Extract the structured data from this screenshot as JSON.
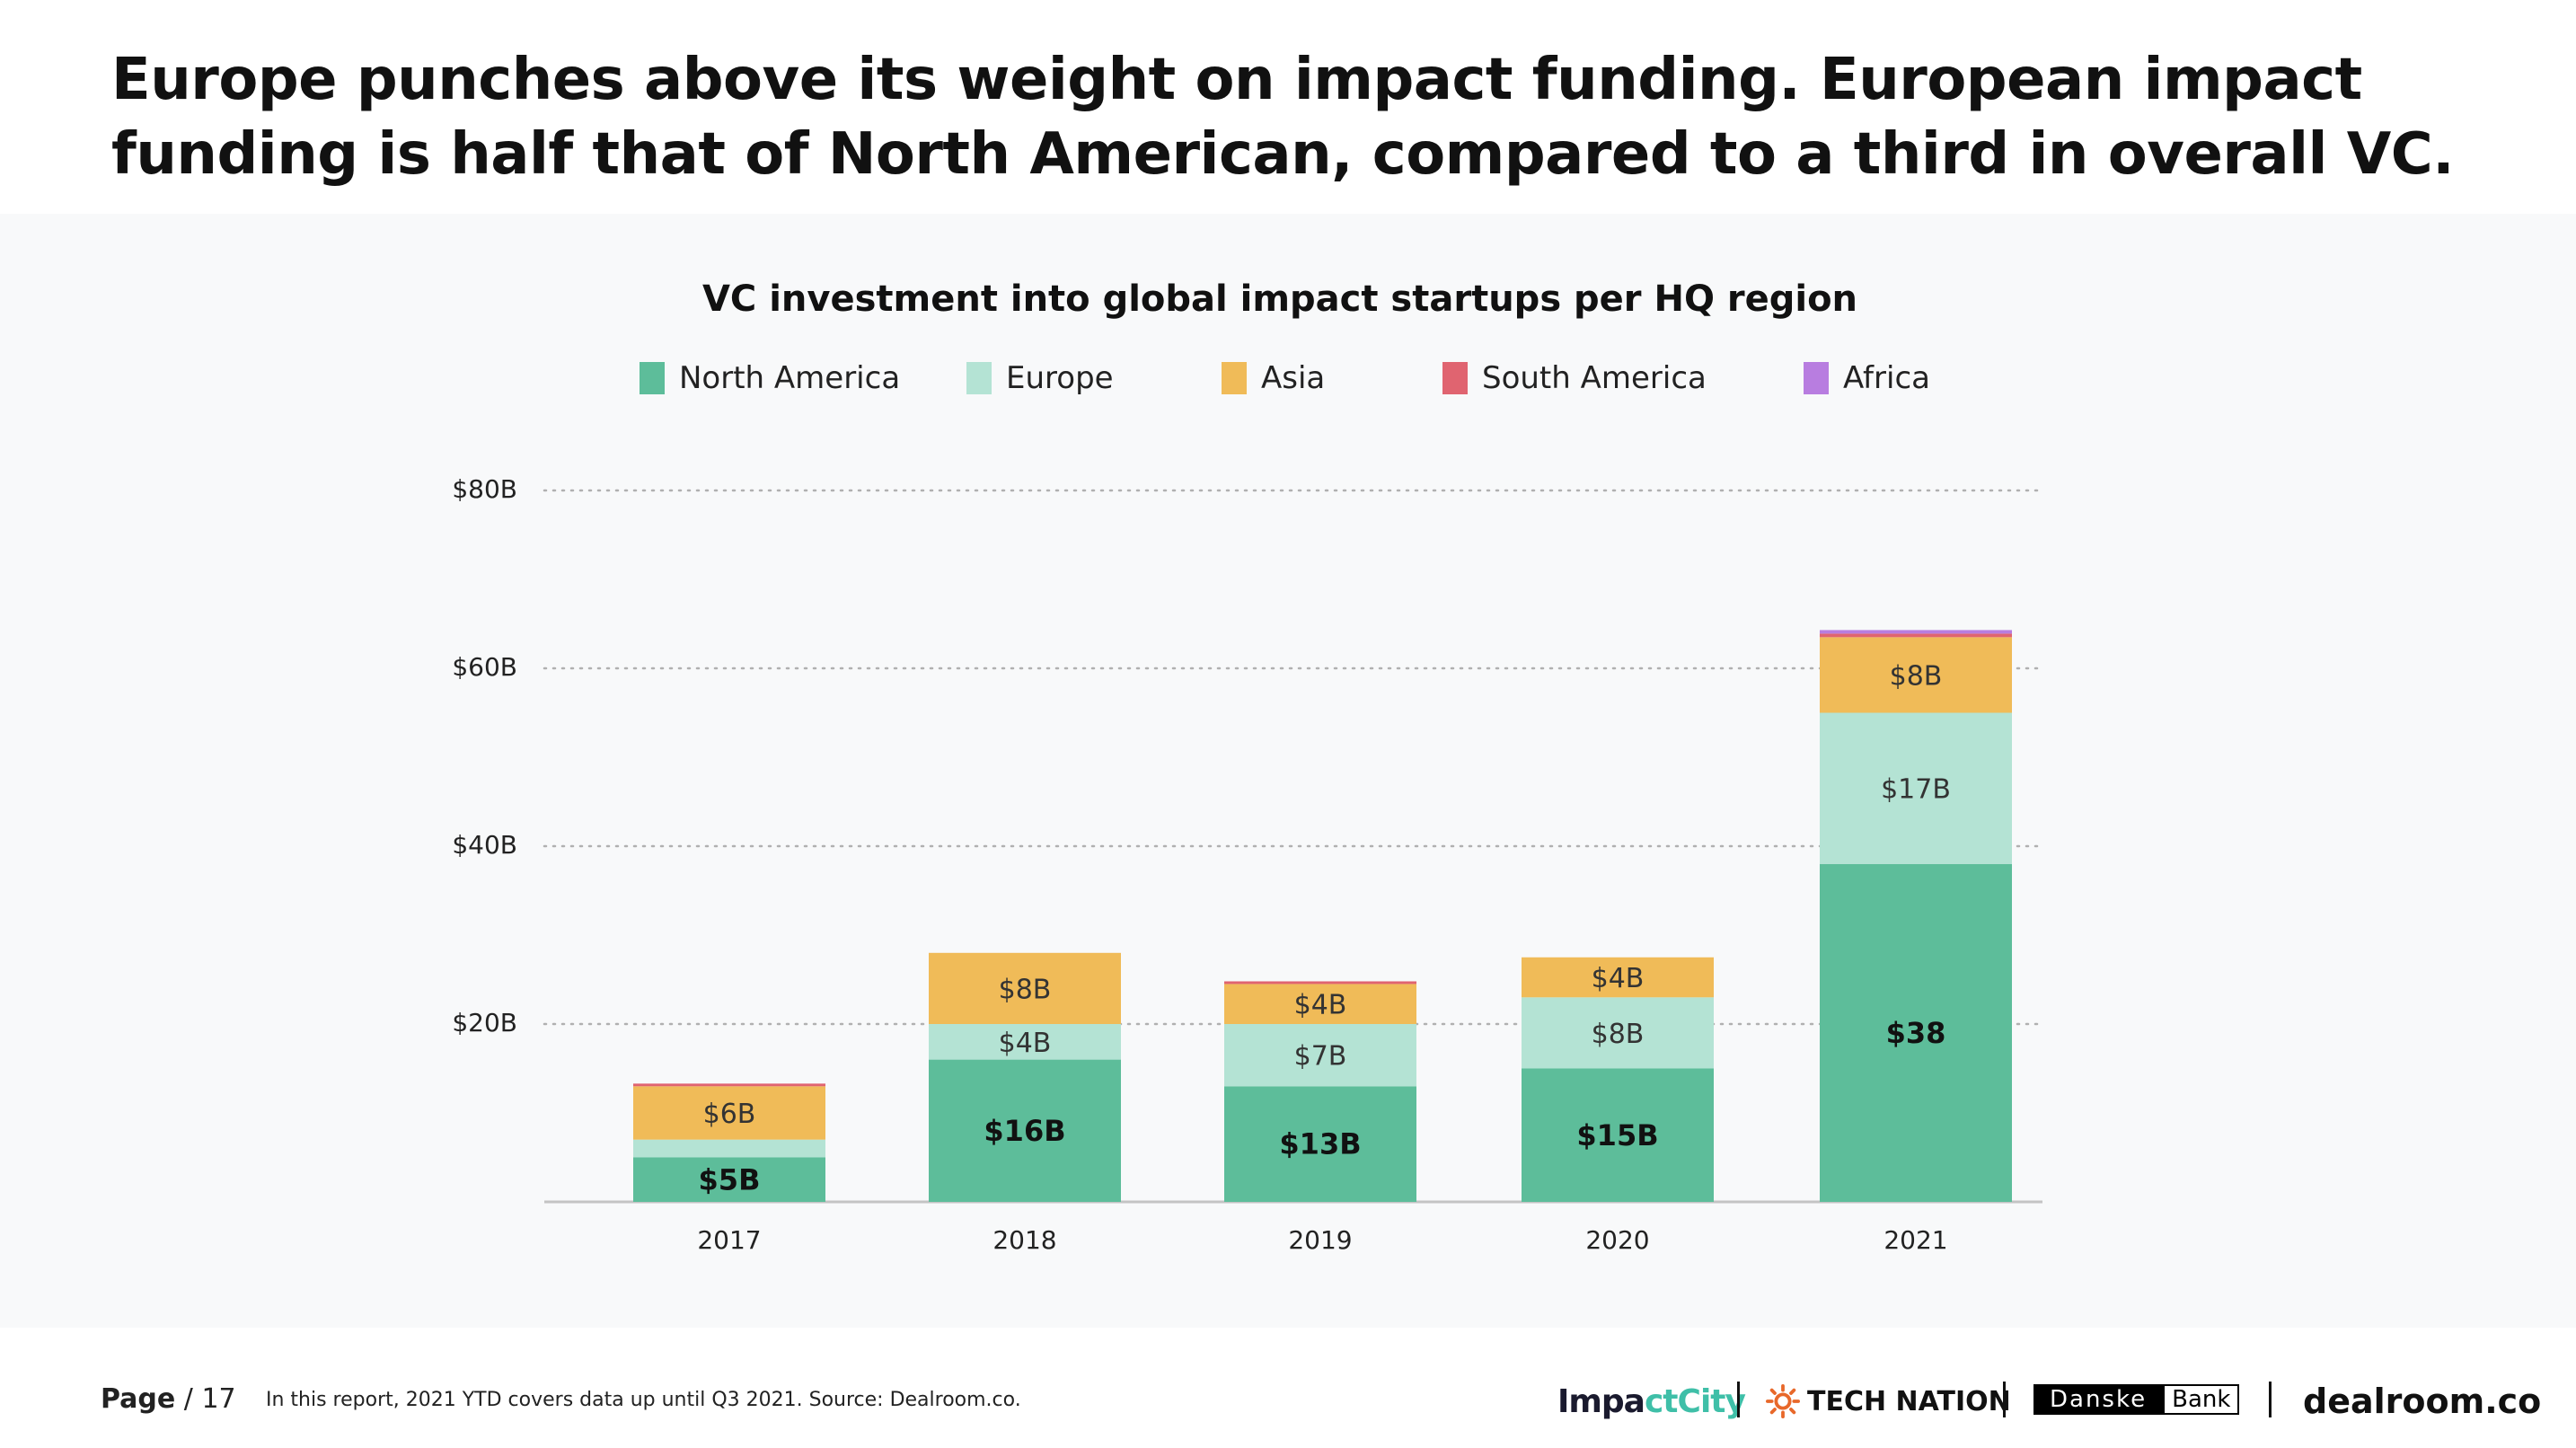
{
  "headline": "Europe punches above its weight on impact funding. European impact funding is half that of North American, compared to a third in overall VC.",
  "footer": {
    "page_label": "Page",
    "page_number": "/ 17",
    "note": "In this report, 2021 YTD covers data up until Q3 2021. Source: Dealroom.co.",
    "logos": {
      "impactcity_a": "Impa",
      "impactcity_b": "ctCity",
      "technation": "TECH NATION",
      "danske_a": "Danske",
      "danske_b": "Bank",
      "dealroom": "dealroom.co"
    }
  },
  "chart_data": {
    "type": "bar",
    "stacked": true,
    "title": "VC investment into global impact startups per HQ region",
    "xlabel": "",
    "ylabel": "",
    "categories": [
      "2017",
      "2018",
      "2019",
      "2020",
      "2021"
    ],
    "ylim": [
      0,
      80
    ],
    "yticks": [
      {
        "value": 20,
        "label": "$20B"
      },
      {
        "value": 40,
        "label": "$40B"
      },
      {
        "value": 60,
        "label": "$60B"
      },
      {
        "value": 80,
        "label": "$80B"
      }
    ],
    "grid": true,
    "legend_position": "top",
    "series": [
      {
        "name": "North America",
        "color": "#5dbd9a",
        "values": [
          5,
          16,
          13,
          15,
          38
        ],
        "labels": [
          "$5B",
          "$16B",
          "$13B",
          "$15B",
          "$38"
        ],
        "label_bold": true
      },
      {
        "name": "Europe",
        "color": "#b4e3d4",
        "values": [
          2,
          4,
          7,
          8,
          17
        ],
        "labels": [
          "",
          "$4B",
          "$7B",
          "$8B",
          "$17B"
        ],
        "label_bold": false
      },
      {
        "name": "Asia",
        "color": "#f0bb58",
        "values": [
          6,
          8,
          4.5,
          4.5,
          8.5
        ],
        "labels": [
          "$6B",
          "$8B",
          "$4B",
          "$4B",
          "$8B"
        ],
        "label_bold": false
      },
      {
        "name": "South America",
        "color": "#e06470",
        "values": [
          0.3,
          0,
          0.3,
          0,
          0.4
        ],
        "labels": [
          "",
          "",
          "",
          "",
          ""
        ],
        "label_bold": false
      },
      {
        "name": "Africa",
        "color": "#b87de0",
        "values": [
          0,
          0,
          0,
          0,
          0.4
        ],
        "labels": [
          "",
          "",
          "",
          "",
          ""
        ],
        "label_bold": false
      }
    ]
  }
}
